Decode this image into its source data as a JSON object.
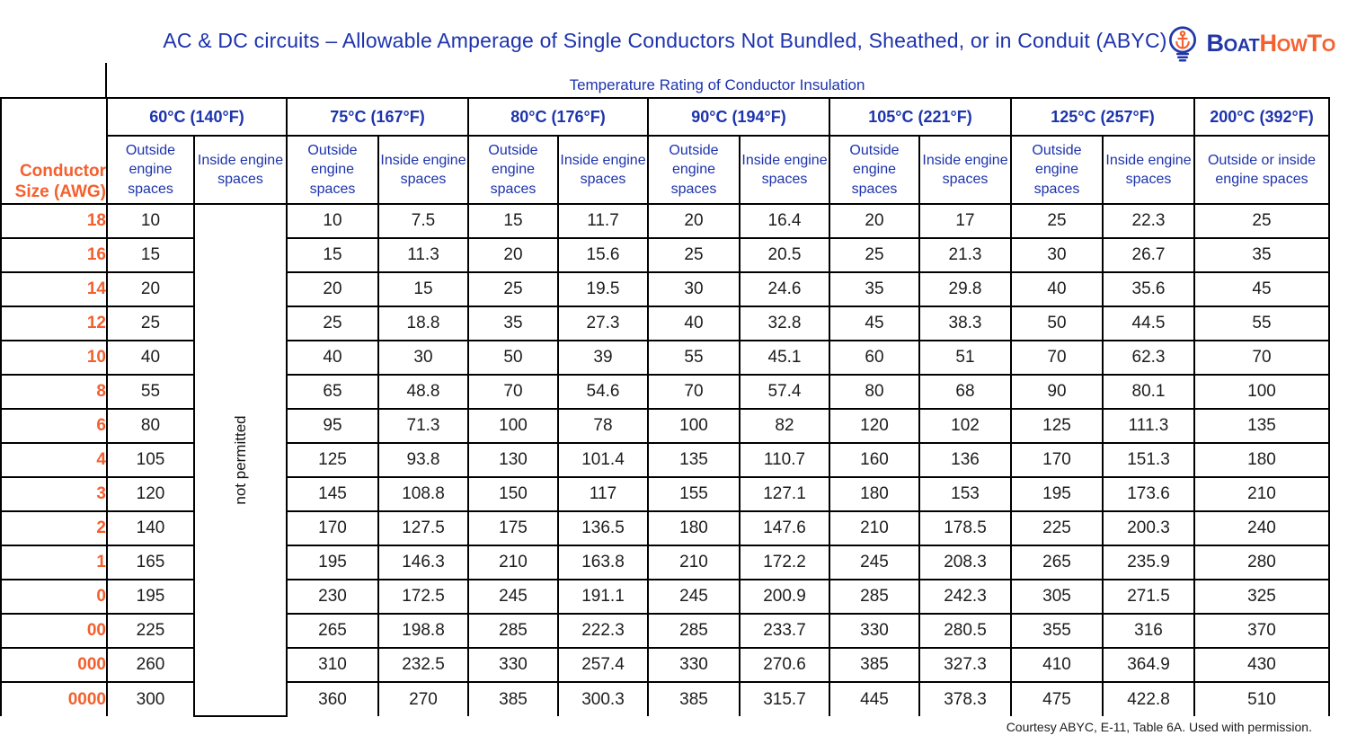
{
  "title": "AC & DC circuits – Allowable Amperage of Single Conductors Not Bundled, Sheathed, or in Conduit (ABYC)",
  "logo": {
    "icon": "anchor-lightbulb-icon",
    "segments": [
      {
        "t": "B",
        "big": true,
        "c": "c-blue"
      },
      {
        "t": "OAT",
        "big": false,
        "c": "c-blue"
      },
      {
        "t": "H",
        "big": true,
        "c": "c-orange"
      },
      {
        "t": "OW",
        "big": false,
        "c": "c-orange"
      },
      {
        "t": "T",
        "big": true,
        "c": "c-orange"
      },
      {
        "t": "O",
        "big": false,
        "c": "c-orange"
      }
    ]
  },
  "footer": "Courtesy ABYC, E-11, Table 6A. Used with permission.",
  "colors": {
    "blue": "#1d33ad",
    "orange": "#f4602e",
    "border": "#000000",
    "value_text": "#1d1d1d"
  },
  "chart_data": {
    "type": "table",
    "title": "AC & DC circuits – Allowable Amperage of Single Conductors Not Bundled, Sheathed, or in Conduit (ABYC)",
    "header_group_label": "Temperature Rating of Conductor Insulation",
    "row_header_label": "Conductor Size (AWG)",
    "temperature_columns": [
      {
        "label": "60°C (140°F)",
        "sub": [
          "Outside engine spaces",
          "Inside engine spaces"
        ]
      },
      {
        "label": "75°C (167°F)",
        "sub": [
          "Outside engine spaces",
          "Inside engine spaces"
        ]
      },
      {
        "label": "80°C (176°F)",
        "sub": [
          "Outside engine spaces",
          "Inside engine spaces"
        ]
      },
      {
        "label": "90°C (194°F)",
        "sub": [
          "Outside engine spaces",
          "Inside engine spaces"
        ]
      },
      {
        "label": "105°C (221°F)",
        "sub": [
          "Outside engine spaces",
          "Inside engine spaces"
        ]
      },
      {
        "label": "125°C (257°F)",
        "sub": [
          "Outside engine spaces",
          "Inside engine spaces"
        ]
      },
      {
        "label": "200°C (392°F)",
        "sub": [
          "Outside or inside engine spaces"
        ]
      }
    ],
    "not_permitted": {
      "label": "not permitted",
      "column": "60°C Inside engine spaces",
      "applies_to_rows": "all"
    },
    "value_columns": [
      "60°C Outside",
      "75°C Outside",
      "75°C Inside",
      "80°C Outside",
      "80°C Inside",
      "90°C Outside",
      "90°C Inside",
      "105°C Outside",
      "105°C Inside",
      "125°C Outside",
      "125°C Inside",
      "200°C Outside or inside"
    ],
    "rows": [
      {
        "awg": "18",
        "values": [
          "10",
          "10",
          "7.5",
          "15",
          "11.7",
          "20",
          "16.4",
          "20",
          "17",
          "25",
          "22.3",
          "25"
        ]
      },
      {
        "awg": "16",
        "values": [
          "15",
          "15",
          "11.3",
          "20",
          "15.6",
          "25",
          "20.5",
          "25",
          "21.3",
          "30",
          "26.7",
          "35"
        ]
      },
      {
        "awg": "14",
        "values": [
          "20",
          "20",
          "15",
          "25",
          "19.5",
          "30",
          "24.6",
          "35",
          "29.8",
          "40",
          "35.6",
          "45"
        ]
      },
      {
        "awg": "12",
        "values": [
          "25",
          "25",
          "18.8",
          "35",
          "27.3",
          "40",
          "32.8",
          "45",
          "38.3",
          "50",
          "44.5",
          "55"
        ]
      },
      {
        "awg": "10",
        "values": [
          "40",
          "40",
          "30",
          "50",
          "39",
          "55",
          "45.1",
          "60",
          "51",
          "70",
          "62.3",
          "70"
        ]
      },
      {
        "awg": "8",
        "values": [
          "55",
          "65",
          "48.8",
          "70",
          "54.6",
          "70",
          "57.4",
          "80",
          "68",
          "90",
          "80.1",
          "100"
        ]
      },
      {
        "awg": "6",
        "values": [
          "80",
          "95",
          "71.3",
          "100",
          "78",
          "100",
          "82",
          "120",
          "102",
          "125",
          "111.3",
          "135"
        ]
      },
      {
        "awg": "4",
        "values": [
          "105",
          "125",
          "93.8",
          "130",
          "101.4",
          "135",
          "110.7",
          "160",
          "136",
          "170",
          "151.3",
          "180"
        ]
      },
      {
        "awg": "3",
        "values": [
          "120",
          "145",
          "108.8",
          "150",
          "117",
          "155",
          "127.1",
          "180",
          "153",
          "195",
          "173.6",
          "210"
        ]
      },
      {
        "awg": "2",
        "values": [
          "140",
          "170",
          "127.5",
          "175",
          "136.5",
          "180",
          "147.6",
          "210",
          "178.5",
          "225",
          "200.3",
          "240"
        ]
      },
      {
        "awg": "1",
        "values": [
          "165",
          "195",
          "146.3",
          "210",
          "163.8",
          "210",
          "172.2",
          "245",
          "208.3",
          "265",
          "235.9",
          "280"
        ]
      },
      {
        "awg": "0",
        "values": [
          "195",
          "230",
          "172.5",
          "245",
          "191.1",
          "245",
          "200.9",
          "285",
          "242.3",
          "305",
          "271.5",
          "325"
        ]
      },
      {
        "awg": "00",
        "values": [
          "225",
          "265",
          "198.8",
          "285",
          "222.3",
          "285",
          "233.7",
          "330",
          "280.5",
          "355",
          "316",
          "370"
        ]
      },
      {
        "awg": "000",
        "values": [
          "260",
          "310",
          "232.5",
          "330",
          "257.4",
          "330",
          "270.6",
          "385",
          "327.3",
          "410",
          "364.9",
          "430"
        ]
      },
      {
        "awg": "0000",
        "values": [
          "300",
          "360",
          "270",
          "385",
          "300.3",
          "385",
          "315.7",
          "445",
          "378.3",
          "475",
          "422.8",
          "510"
        ]
      }
    ]
  }
}
